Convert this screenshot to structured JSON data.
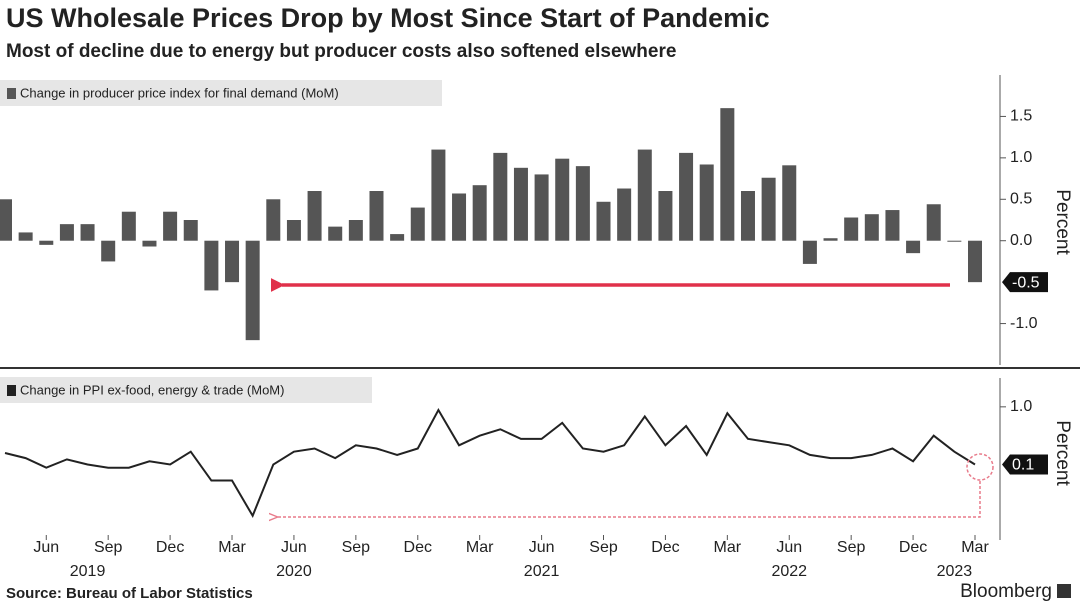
{
  "title": "US Wholesale Prices Drop by Most Since Start of Pandemic",
  "subtitle": "Most of decline due to energy but producer costs also softened elsewhere",
  "source": "Source: Bureau of Labor Statistics",
  "brand": "Bloomberg",
  "chart_data": [
    {
      "type": "bar",
      "y_label": "Percent",
      "series": [
        {
          "name": "Change in producer price index for final demand (MoM)",
          "color": "#555555",
          "values": [
            0.5,
            0.1,
            -0.05,
            0.2,
            0.2,
            -0.25,
            0.35,
            -0.07,
            0.35,
            0.25,
            -0.6,
            -0.5,
            -1.2,
            0.5,
            0.25,
            0.6,
            0.17,
            0.25,
            0.6,
            0.08,
            0.4,
            1.1,
            0.57,
            0.67,
            1.06,
            0.88,
            0.8,
            0.99,
            0.9,
            0.47,
            0.63,
            1.1,
            0.6,
            1.06,
            0.92,
            1.6,
            0.6,
            0.76,
            0.91,
            -0.28,
            0.03,
            0.28,
            0.32,
            0.37,
            -0.15,
            0.44,
            0.0,
            -0.5
          ]
        }
      ],
      "ylim": [
        -1.5,
        2.0
      ],
      "yticks": [
        1.5,
        {
          "value": 1,
          "label": "1.0"
        },
        0.5,
        {
          "value": 0,
          "label": "0.0"
        },
        {
          "value": -1,
          "label": "-1.0"
        }
      ]
    },
    {
      "type": "line",
      "y_label": "Percent",
      "categories": [
        null,
        null,
        "Jun",
        null,
        null,
        "Sep",
        null,
        null,
        "Dec",
        null,
        null,
        "Mar",
        null,
        null,
        "Jun",
        null,
        null,
        "Sep",
        null,
        null,
        "Dec",
        null,
        null,
        "Mar",
        null,
        null,
        "Jun",
        null,
        null,
        "Sep",
        null,
        null,
        "Dec",
        null,
        null,
        "Mar",
        null,
        null,
        "Jun",
        null,
        null,
        "Sep",
        null,
        null,
        "Dec",
        null,
        null,
        "Mar"
      ],
      "year_labels": [
        {
          "value": 4,
          "label": "2019"
        },
        {
          "value": 14,
          "label": "2020"
        },
        {
          "value": 26,
          "label": "2021"
        },
        {
          "value": 38,
          "label": "2022"
        },
        {
          "value": 46,
          "label": "2023"
        }
      ],
      "series": [
        {
          "name": "Change in PPI ex-food, energy & trade (MoM)",
          "color": "#222222",
          "values": [
            0.28,
            0.2,
            0.05,
            0.18,
            0.1,
            0.05,
            0.05,
            0.15,
            0.1,
            0.3,
            -0.15,
            -0.15,
            -0.7,
            0.1,
            0.3,
            0.35,
            0.2,
            0.4,
            0.35,
            0.25,
            0.35,
            0.95,
            0.4,
            0.55,
            0.65,
            0.5,
            0.5,
            0.75,
            0.35,
            0.3,
            0.4,
            0.85,
            0.4,
            0.7,
            0.25,
            0.9,
            0.5,
            0.45,
            0.4,
            0.25,
            0.2,
            0.2,
            0.25,
            0.35,
            0.15,
            0.55,
            0.3,
            0.1
          ]
        }
      ],
      "ylim": [
        -1.0,
        1.45
      ],
      "yticks": [
        {
          "value": 1,
          "label": "1.0"
        }
      ]
    }
  ]
}
